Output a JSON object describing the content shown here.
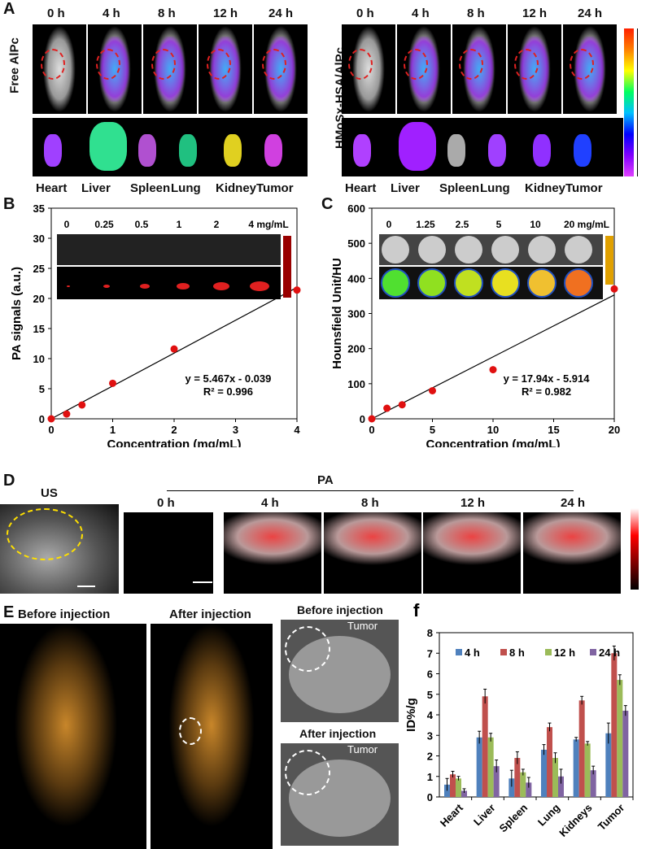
{
  "panel_a": {
    "label": "A",
    "times": [
      "0 h",
      "4 h",
      "8 h",
      "12 h",
      "24 h"
    ],
    "groups": [
      "Free AlPc",
      "HMoSx-HSA/AlPc"
    ],
    "organs": [
      "Heart",
      "Liver",
      "Spleen",
      "Lung",
      "Kidney",
      "Tumor"
    ]
  },
  "panel_b": {
    "label": "B",
    "inset_labels": [
      "0",
      "0.25",
      "0.5",
      "1",
      "2",
      "4 mg/mL"
    ],
    "equation": "y = 5.467x - 0.039",
    "r2": "R² = 0.996"
  },
  "panel_c": {
    "label": "C",
    "inset_labels": [
      "0",
      "1.25",
      "2.5",
      "5",
      "10",
      "20 mg/mL"
    ],
    "equation": "y = 17.94x - 5.914",
    "r2": "R² = 0.982"
  },
  "panel_d": {
    "label": "D",
    "us_label": "US",
    "pa_label": "PA",
    "times": [
      "0 h",
      "4 h",
      "8 h",
      "12 h",
      "24 h"
    ]
  },
  "panel_e": {
    "label": "E",
    "before": "Before injection",
    "after": "After injection",
    "tumor": "Tumor"
  },
  "colors": {
    "4h": "#4f81bd",
    "8h": "#c0504d",
    "12h": "#9bbb59",
    "24h": "#8064a2"
  },
  "chart_data": [
    {
      "type": "scatter",
      "title": "",
      "xlabel": "Concentration (mg/mL)",
      "ylabel": "PA signals (a.u.)",
      "xlim": [
        0,
        4
      ],
      "ylim": [
        0,
        35
      ],
      "xticks": [
        0,
        1,
        2,
        3,
        4
      ],
      "yticks": [
        0,
        5,
        10,
        15,
        20,
        25,
        30,
        35
      ],
      "x": [
        0,
        0.25,
        0.5,
        1,
        2,
        4
      ],
      "y": [
        0,
        0.8,
        2.3,
        5.9,
        11.6,
        21.4
      ],
      "fit": {
        "slope": 5.467,
        "intercept": -0.039
      }
    },
    {
      "type": "scatter",
      "title": "",
      "xlabel": "Concentration (mg/mL)",
      "ylabel": "Hounsfield Unit/HU",
      "xlim": [
        0,
        20
      ],
      "ylim": [
        0,
        600
      ],
      "xticks": [
        0,
        5,
        10,
        15,
        20
      ],
      "yticks": [
        0,
        100,
        200,
        300,
        400,
        500,
        600
      ],
      "x": [
        0,
        1.25,
        2.5,
        5,
        10,
        20
      ],
      "y": [
        0,
        30,
        40,
        80,
        140,
        370
      ],
      "fit": {
        "slope": 17.94,
        "intercept": -5.914
      }
    },
    {
      "type": "bar",
      "title": "f",
      "ylabel": "ID%/g",
      "ylim": [
        0,
        8
      ],
      "yticks": [
        0,
        1,
        2,
        3,
        4,
        5,
        6,
        7,
        8
      ],
      "categories": [
        "Heart",
        "Liver",
        "Spleen",
        "Lung",
        "Kidneys",
        "Tumor"
      ],
      "series": [
        {
          "name": "4 h",
          "values": [
            0.6,
            2.9,
            0.9,
            2.3,
            2.8,
            3.1
          ],
          "errors": [
            0.3,
            0.3,
            0.4,
            0.25,
            0.1,
            0.5
          ]
        },
        {
          "name": "8 h",
          "values": [
            1.1,
            4.9,
            1.9,
            3.4,
            4.7,
            7.0
          ],
          "errors": [
            0.15,
            0.35,
            0.3,
            0.2,
            0.2,
            0.35
          ]
        },
        {
          "name": "12 h",
          "values": [
            0.9,
            2.9,
            1.2,
            1.9,
            2.6,
            5.7
          ],
          "errors": [
            0.1,
            0.2,
            0.15,
            0.25,
            0.1,
            0.25
          ]
        },
        {
          "name": "24 h",
          "values": [
            0.3,
            1.5,
            0.7,
            1.0,
            1.3,
            4.2
          ],
          "errors": [
            0.1,
            0.3,
            0.25,
            0.35,
            0.2,
            0.25
          ]
        }
      ]
    }
  ]
}
